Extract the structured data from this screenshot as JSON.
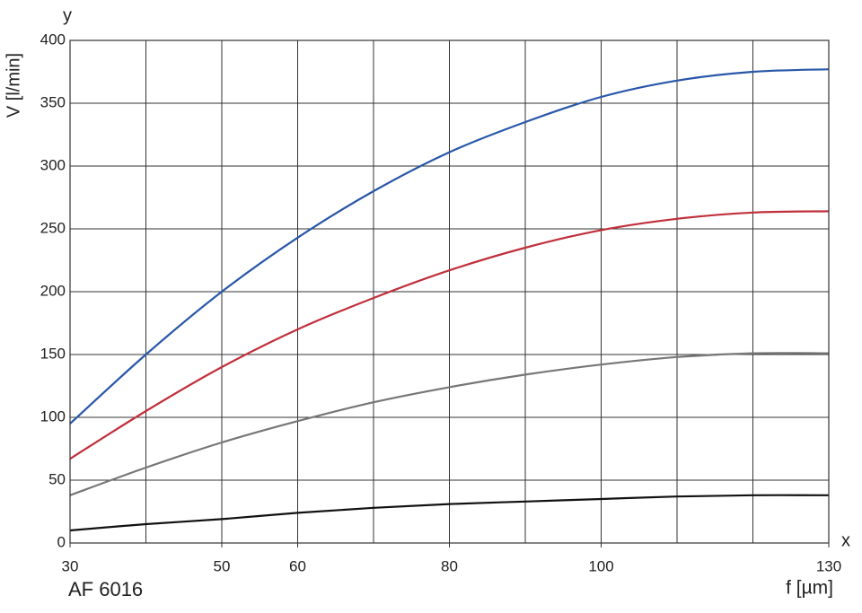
{
  "chart_data": {
    "type": "line",
    "y_axis_letter": "y",
    "x_axis_letter": "x",
    "y_label": "V [l/min]",
    "x_label": "f [µm]",
    "caption": "AF 6016",
    "x": [
      30,
      40,
      50,
      60,
      70,
      80,
      90,
      100,
      110,
      120,
      130
    ],
    "series": [
      {
        "color": "#2857a8",
        "values": [
          95,
          150,
          200,
          243,
          280,
          311,
          335,
          355,
          368,
          375,
          377
        ]
      },
      {
        "color": "#c0303c",
        "values": [
          67,
          105,
          140,
          170,
          195,
          217,
          235,
          249,
          258,
          263,
          264
        ]
      },
      {
        "color": "#777777",
        "values": [
          38,
          60,
          80,
          97,
          112,
          124,
          134,
          142,
          148,
          151,
          151
        ]
      },
      {
        "color": "#111111",
        "values": [
          10,
          15,
          19,
          24,
          28,
          31,
          33,
          35,
          37,
          38,
          38
        ]
      }
    ],
    "xlim": [
      30,
      130
    ],
    "xticks": [
      30,
      50,
      60,
      80,
      100,
      130
    ],
    "xgrid": [
      30,
      40,
      50,
      60,
      70,
      80,
      90,
      100,
      110,
      120,
      130
    ],
    "ylim": [
      0,
      400
    ],
    "yticks": [
      0,
      50,
      100,
      150,
      200,
      250,
      300,
      350,
      400
    ],
    "grid": true
  }
}
